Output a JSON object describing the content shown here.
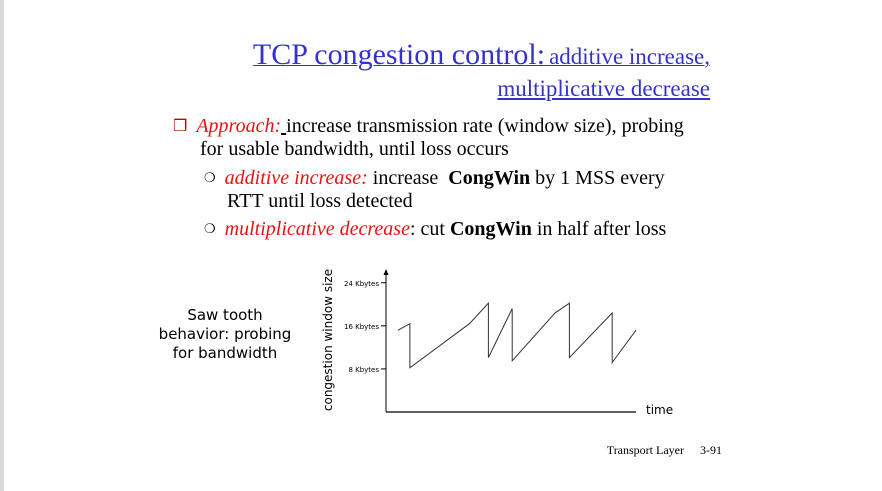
{
  "slide": {
    "title_main": "TCP congestion control:",
    "title_sub_line1": "additive increase,",
    "title_sub_line2": "multiplicative decrease",
    "bullet1": {
      "label": "Approach:",
      "text_line1": "increase transmission rate (window size), probing",
      "text_line2": "for usable bandwidth, until loss occurs"
    },
    "sub1": {
      "label": "additive increase:",
      "text_a": "increase",
      "keyword": "CongWin",
      "text_b": "by 1 MSS every",
      "text_line2": "RTT until loss detected"
    },
    "sub2": {
      "label": "multiplicative decrease",
      "text_a": ": cut",
      "keyword": "CongWin",
      "text_b": "in half after loss"
    },
    "side_label": {
      "line1": "Saw tooth",
      "line2": "behavior: probing",
      "line3": "for bandwidth"
    },
    "footer": {
      "section": "Transport Layer",
      "page": "3-91"
    }
  },
  "chart_data": {
    "type": "line",
    "title": "",
    "xlabel": "time",
    "ylabel": "congestion window size",
    "y_ticks": [
      {
        "value": 24,
        "label": "24 Kbytes"
      },
      {
        "value": 16,
        "label": "16 Kbytes"
      },
      {
        "value": 8,
        "label": "8 Kbytes"
      }
    ],
    "ylim": [
      0,
      26
    ],
    "xlim": [
      0,
      10
    ],
    "grid": false,
    "series": [
      {
        "points": [
          [
            0.0,
            15.2
          ],
          [
            0.5,
            16.4
          ],
          [
            0.5,
            8.2
          ],
          [
            3.0,
            16.4
          ],
          [
            3.8,
            20.2
          ],
          [
            3.8,
            10.1
          ],
          [
            4.8,
            19.2
          ],
          [
            4.8,
            9.5
          ],
          [
            6.6,
            18.4
          ],
          [
            7.2,
            20.2
          ],
          [
            7.2,
            10.1
          ],
          [
            9.0,
            18.4
          ],
          [
            9.0,
            9.2
          ],
          [
            10.0,
            15.2
          ]
        ]
      }
    ]
  }
}
